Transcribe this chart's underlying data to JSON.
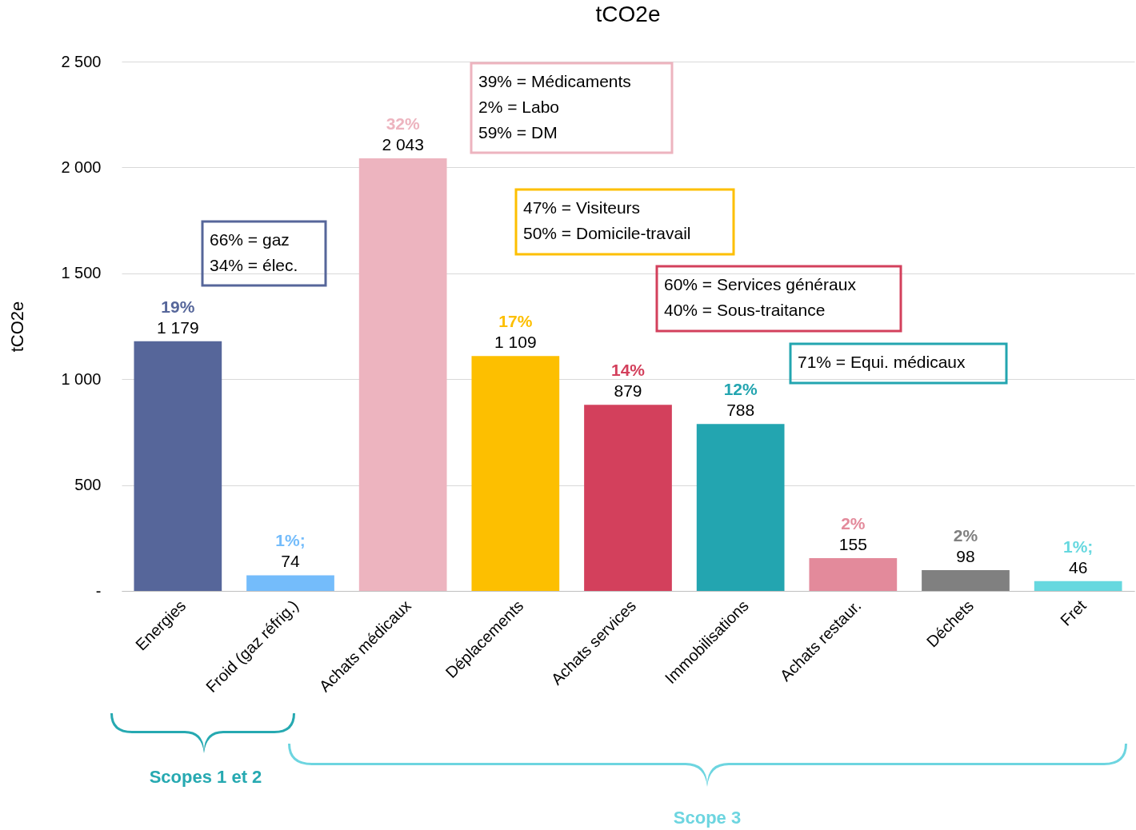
{
  "chart_data": {
    "type": "bar",
    "title": "tCO2e",
    "ylabel": "tCO2e",
    "categories": [
      "Energies",
      "Froid (gaz réfrig.)",
      "Achats médicaux",
      "Déplacements",
      "Achats services",
      "Immobilisations",
      "Achats restaur.",
      "Déchets",
      "Fret"
    ],
    "values": [
      1179,
      74,
      2043,
      1109,
      879,
      788,
      155,
      98,
      46
    ],
    "value_labels": [
      "1 179",
      "74",
      "2 043",
      "1 109",
      "879",
      "788",
      "155",
      "98",
      "46"
    ],
    "colors": [
      "#56669a",
      "#74bcfb",
      "#edb4bf",
      "#fdbf00",
      "#d3405c",
      "#23a5b0",
      "#e38a9b",
      "#808080",
      "#66d8df"
    ],
    "ylim": [
      0,
      2500
    ],
    "yticks": [
      {
        "value": 0,
        "label": "-"
      },
      500,
      {
        "value": 1000,
        "label": "1 000"
      },
      {
        "value": 1500,
        "label": "1 500"
      },
      {
        "value": 2000,
        "label": "2 000"
      },
      {
        "value": 2500,
        "label": "2 500"
      }
    ],
    "grid": "y",
    "annotations": [
      {
        "text": "19%",
        "x": "Energies",
        "y": 1179
      },
      {
        "text": "1%;",
        "x": "Froid (gaz réfrig.)",
        "y": 74
      },
      {
        "text": "32%",
        "x": "Achats médicaux",
        "y": 2043
      },
      {
        "text": "17%",
        "x": "Déplacements",
        "y": 1109
      },
      {
        "text": "14%",
        "x": "Achats services",
        "y": 879
      },
      {
        "text": "12%",
        "x": "Immobilisations",
        "y": 788
      },
      {
        "text": "2%",
        "x": "Achats restaur.",
        "y": 155
      },
      {
        "text": "2%",
        "x": "Déchets",
        "y": 98
      },
      {
        "text": "1%;",
        "x": "Fret",
        "y": 46
      },
      "66% = gaz\n34% = élec.",
      "39% = Médicaments\n2% = Labo\n59% = DM",
      "47% = Visiteurs\n50% = Domicile-travail",
      "60% = Services généraux\n40% = Sous-traitance",
      "71% = Equi. médicaux",
      "Scopes 1 et 2",
      "Scope 3"
    ]
  }
}
